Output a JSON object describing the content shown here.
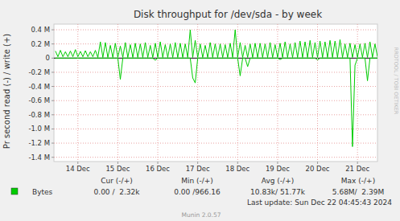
{
  "chart_data": {
    "type": "line",
    "title": "Disk throughput for /dev/sda - by week",
    "y_label": "Pr second read (-) / write (+)",
    "grid": true,
    "legend": "bottom",
    "xlim": [
      13.9,
      22.0
    ],
    "xticks": [
      {
        "value": 14.5,
        "label": "14 Dec"
      },
      {
        "value": 15.5,
        "label": "15 Dec"
      },
      {
        "value": 16.5,
        "label": "16 Dec"
      },
      {
        "value": 17.5,
        "label": "17 Dec"
      },
      {
        "value": 18.5,
        "label": "18 Dec"
      },
      {
        "value": 19.5,
        "label": "19 Dec"
      },
      {
        "value": 20.5,
        "label": "20 Dec"
      },
      {
        "value": 21.5,
        "label": "21 Dec"
      }
    ],
    "ylim": [
      -1460000,
      480000
    ],
    "yticks": [
      {
        "value": 400000,
        "label": "0.4 M"
      },
      {
        "value": 200000,
        "label": "0.2 M"
      },
      0,
      {
        "value": -200000,
        "label": "-0.2 M"
      },
      {
        "value": -400000,
        "label": "-0.4 M"
      },
      {
        "value": -600000,
        "label": "-0.6 M"
      },
      {
        "value": -800000,
        "label": "-0.8 M"
      },
      {
        "value": -1000000,
        "label": "-1.0 M"
      },
      {
        "value": -1200000,
        "label": "-1.2 M"
      },
      {
        "value": -1400000,
        "label": "-1.4 M"
      }
    ],
    "x": [
      13.9375,
      14,
      14.0625,
      14.125,
      14.1875,
      14.25,
      14.3125,
      14.375,
      14.4375,
      14.5,
      14.5625,
      14.625,
      14.6875,
      14.75,
      14.8125,
      14.875,
      14.9375,
      15,
      15.0625,
      15.125,
      15.1875,
      15.25,
      15.3125,
      15.375,
      15.4375,
      15.5,
      15.5625,
      15.625,
      15.6875,
      15.75,
      15.8125,
      15.875,
      15.9375,
      16,
      16.0625,
      16.125,
      16.1875,
      16.25,
      16.3125,
      16.375,
      16.4375,
      16.5,
      16.5625,
      16.625,
      16.6875,
      16.75,
      16.8125,
      16.875,
      16.9375,
      17,
      17.0625,
      17.125,
      17.1875,
      17.25,
      17.3125,
      17.375,
      17.4375,
      17.5,
      17.5625,
      17.625,
      17.6875,
      17.75,
      17.8125,
      17.875,
      17.9375,
      18,
      18.0625,
      18.125,
      18.1875,
      18.25,
      18.3125,
      18.375,
      18.4375,
      18.5,
      18.5625,
      18.625,
      18.6875,
      18.75,
      18.8125,
      18.875,
      18.9375,
      19,
      19.0625,
      19.125,
      19.1875,
      19.25,
      19.3125,
      19.375,
      19.4375,
      19.5,
      19.5625,
      19.625,
      19.6875,
      19.75,
      19.8125,
      19.875,
      19.9375,
      20,
      20.0625,
      20.125,
      20.1875,
      20.25,
      20.3125,
      20.375,
      20.4375,
      20.5,
      20.5625,
      20.625,
      20.6875,
      20.75,
      20.8125,
      20.875,
      20.9375,
      21,
      21.0625,
      21.125,
      21.1875,
      21.25,
      21.3125,
      21.375,
      21.4375,
      21.5,
      21.5625,
      21.625,
      21.6875,
      21.75,
      21.8125,
      21.875,
      21.9375,
      22
    ],
    "series": [
      {
        "name": "Bytes",
        "color": "#00cc00",
        "values": [
          100000,
          20000,
          110000,
          20000,
          90000,
          20000,
          100000,
          20000,
          120000,
          20000,
          95000,
          20000,
          105000,
          20000,
          90000,
          20000,
          110000,
          10000,
          230000,
          10000,
          220000,
          10000,
          180000,
          10000,
          210000,
          10000,
          170000,
          10000,
          220000,
          10000,
          190000,
          10000,
          210000,
          10000,
          200000,
          10000,
          220000,
          10000,
          180000,
          10000,
          210000,
          10000,
          230000,
          10000,
          190000,
          10000,
          200000,
          10000,
          220000,
          10000,
          210000,
          10000,
          200000,
          10000,
          400000,
          10000,
          250000,
          10000,
          200000,
          10000,
          180000,
          10000,
          220000,
          10000,
          200000,
          10000,
          200000,
          10000,
          190000,
          10000,
          210000,
          10000,
          400000,
          10000,
          220000,
          10000,
          180000,
          10000,
          200000,
          10000,
          210000,
          10000,
          210000,
          10000,
          200000,
          10000,
          220000,
          10000,
          190000,
          10000,
          210000,
          10000,
          230000,
          10000,
          200000,
          10000,
          220000,
          10000,
          240000,
          10000,
          230000,
          10000,
          250000,
          10000,
          220000,
          10000,
          240000,
          10000,
          230000,
          10000,
          250000,
          10000,
          240000,
          10000,
          260000,
          10000,
          200000,
          10000,
          210000,
          10000,
          190000,
          10000,
          200000,
          10000,
          210000,
          10000,
          230000,
          10000,
          200000,
          20000
        ]
      },
      {
        "color": "#00cc00",
        "values": [
          0,
          0,
          0,
          0,
          0,
          0,
          0,
          0,
          0,
          0,
          0,
          0,
          0,
          0,
          0,
          0,
          0,
          0,
          0,
          0,
          0,
          0,
          0,
          0,
          0,
          0,
          -300000,
          0,
          0,
          0,
          0,
          0,
          0,
          0,
          0,
          0,
          0,
          0,
          0,
          0,
          -30000,
          0,
          0,
          0,
          0,
          0,
          0,
          0,
          0,
          0,
          0,
          0,
          0,
          0,
          0,
          -280000,
          -350000,
          0,
          0,
          0,
          0,
          0,
          0,
          0,
          0,
          0,
          0,
          0,
          0,
          0,
          0,
          0,
          0,
          0,
          -250000,
          0,
          0,
          -120000,
          0,
          0,
          0,
          0,
          0,
          0,
          0,
          0,
          0,
          0,
          0,
          0,
          -20000,
          0,
          0,
          0,
          0,
          0,
          0,
          0,
          0,
          0,
          0,
          0,
          0,
          0,
          0,
          -25000,
          0,
          0,
          0,
          0,
          0,
          0,
          0,
          0,
          0,
          0,
          0,
          0,
          0,
          -1250000,
          -100000,
          0,
          0,
          0,
          0,
          -320000,
          0,
          0,
          0,
          0
        ]
      }
    ],
    "annotations": {
      "columns": [
        "Cur (-/+)",
        "Min (-/+)",
        "Avg (-/+)",
        "Max (-/+)"
      ],
      "values": [
        "0.00 /  2.32k",
        "0.00 /966.16",
        "10.83k/ 51.77k",
        "5.68M/  2.39M"
      ],
      "last_update": "Last update: Sun Dec 22 04:45:43 2024",
      "footer": "Munin 2.0.57",
      "watermark": "RRDTOOL / TOBI OETIKER"
    }
  }
}
